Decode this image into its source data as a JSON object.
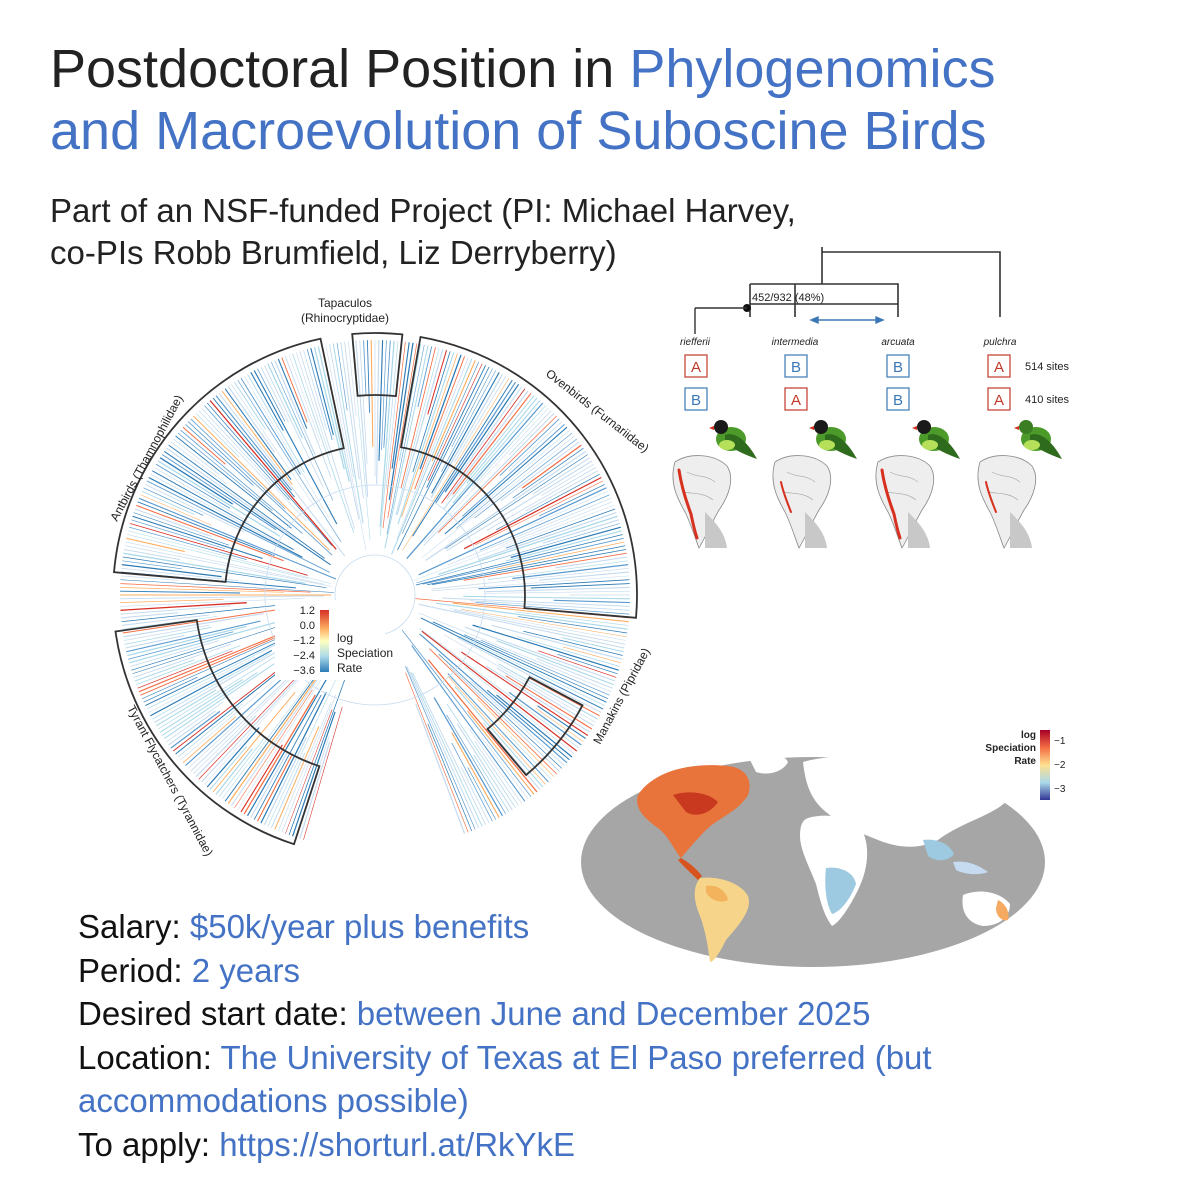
{
  "title": {
    "plain": "Postdoctoral Position in ",
    "accent_line1": "Phylogenomics",
    "accent_line2": "and Macroevolution of Suboscine Birds"
  },
  "subtitle": {
    "line1": "Part of an NSF-funded Project (PI: Michael Harvey,",
    "line2": "co-PIs Robb Brumfield, Liz Derryberry)"
  },
  "tree_figure": {
    "clades": {
      "tapaculos_1": "Tapaculos",
      "tapaculos_2": "(Rhinocryptidae)",
      "ovenbirds": "Ovenbirds (Furnariidae)",
      "antbirds": "Antbirds (Thamnophilidae)",
      "manakins": "Manakins (Pipridae)",
      "flycatchers": "Tyrant Flycatchers (Tyrannidae)"
    },
    "legend": {
      "ticks": [
        "1.2",
        "0.0",
        "−1.2",
        "−2.4",
        "−3.6"
      ],
      "label1": "log",
      "label2": "Speciation",
      "label3": "Rate"
    }
  },
  "quartet_figure": {
    "node_label": "452/932 (48%)",
    "taxa": [
      {
        "name": "riefferii",
        "row1": "A",
        "row2": "B"
      },
      {
        "name": "intermedia",
        "row1": "B",
        "row2": "A"
      },
      {
        "name": "arcuata",
        "row1": "B",
        "row2": "B"
      },
      {
        "name": "pulchra",
        "row1": "A",
        "row2": "A"
      }
    ],
    "row1_sites": "514 sites",
    "row2_sites": "410 sites"
  },
  "world_figure": {
    "legend_label1": "log",
    "legend_label2": "Speciation",
    "legend_label3": "Rate",
    "ticks": [
      "−1",
      "−2",
      "−3"
    ]
  },
  "info": {
    "salary_label": "Salary: ",
    "salary_value": "$50k/year plus benefits",
    "period_label": "Period: ",
    "period_value": "2 years",
    "start_label": "Desired start date: ",
    "start_value": "between June and December 2025",
    "location_label": "Location: ",
    "location_value_1": "The University of Texas at El Paso preferred (but",
    "location_value_2": "accommodations possible)",
    "apply_label": "To apply: ",
    "apply_value": "https://shorturl.at/RkYkE"
  },
  "colors": {
    "accent": "#4472c4",
    "red": "#d7301f",
    "blue": "#2c7bb6",
    "box_red": "#c0392b",
    "box_blue": "#3a78b5"
  }
}
